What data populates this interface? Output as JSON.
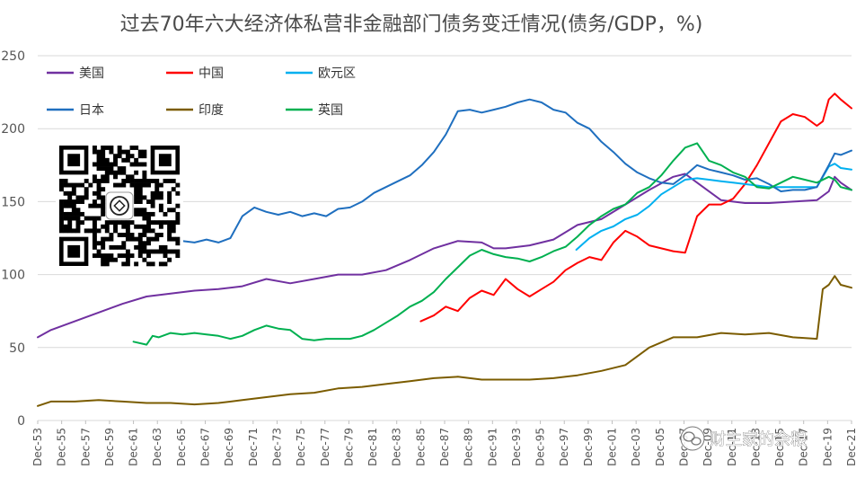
{
  "chart_data": {
    "type": "line",
    "title": "过去70年六大经济体私营非金融部门债务变迁情况(债务/GDP，%)",
    "xlabel": "",
    "ylabel": "",
    "ylim": [
      0,
      250
    ],
    "yticks": [
      0,
      50,
      100,
      150,
      200,
      250
    ],
    "xticks": [
      "Dec-53",
      "Dec-55",
      "Dec-57",
      "Dec-59",
      "Dec-61",
      "Dec-63",
      "Dec-65",
      "Dec-67",
      "Dec-69",
      "Dec-71",
      "Dec-73",
      "Dec-75",
      "Dec-77",
      "Dec-79",
      "Dec-81",
      "Dec-83",
      "Dec-85",
      "Dec-87",
      "Dec-89",
      "Dec-91",
      "Dec-93",
      "Dec-95",
      "Dec-97",
      "Dec-99",
      "Dec-01",
      "Dec-03",
      "Dec-05",
      "Dec-07",
      "Dec-09",
      "Dec-11",
      "Dec-13",
      "Dec-15",
      "Dec-17",
      "Dec-19",
      "Dec-21"
    ],
    "grid": "horizontal",
    "legend_position": "top-left",
    "series": [
      {
        "name": "美国",
        "color": "#7030a0",
        "points": [
          [
            1953.9,
            57
          ],
          [
            1955,
            62
          ],
          [
            1957,
            68
          ],
          [
            1959,
            74
          ],
          [
            1961,
            80
          ],
          [
            1963,
            85
          ],
          [
            1965,
            87
          ],
          [
            1967,
            89
          ],
          [
            1969,
            90
          ],
          [
            1971,
            92
          ],
          [
            1973,
            97
          ],
          [
            1975,
            94
          ],
          [
            1977,
            97
          ],
          [
            1979,
            100
          ],
          [
            1981,
            100
          ],
          [
            1983,
            103
          ],
          [
            1985,
            110
          ],
          [
            1987,
            118
          ],
          [
            1989,
            123
          ],
          [
            1991,
            122
          ],
          [
            1992,
            118
          ],
          [
            1993,
            118
          ],
          [
            1995,
            120
          ],
          [
            1997,
            124
          ],
          [
            1999,
            134
          ],
          [
            2001,
            138
          ],
          [
            2003,
            148
          ],
          [
            2005,
            158
          ],
          [
            2007,
            167
          ],
          [
            2008,
            169
          ],
          [
            2009,
            163
          ],
          [
            2011,
            151
          ],
          [
            2013,
            149
          ],
          [
            2015,
            149
          ],
          [
            2017,
            150
          ],
          [
            2019,
            151
          ],
          [
            2020,
            157
          ],
          [
            2020.5,
            167
          ],
          [
            2021,
            163
          ],
          [
            2021.9,
            158
          ]
        ]
      },
      {
        "name": "中国",
        "color": "#ff0000",
        "points": [
          [
            1985.9,
            68
          ],
          [
            1987,
            72
          ],
          [
            1988,
            78
          ],
          [
            1989,
            75
          ],
          [
            1990,
            84
          ],
          [
            1991,
            89
          ],
          [
            1992,
            86
          ],
          [
            1993,
            97
          ],
          [
            1994,
            90
          ],
          [
            1995,
            85
          ],
          [
            1996,
            90
          ],
          [
            1997,
            95
          ],
          [
            1998,
            103
          ],
          [
            1999,
            108
          ],
          [
            2000,
            112
          ],
          [
            2001,
            110
          ],
          [
            2002,
            122
          ],
          [
            2003,
            130
          ],
          [
            2004,
            126
          ],
          [
            2005,
            120
          ],
          [
            2006,
            118
          ],
          [
            2007,
            116
          ],
          [
            2008,
            115
          ],
          [
            2009,
            140
          ],
          [
            2010,
            148
          ],
          [
            2011,
            148
          ],
          [
            2012,
            152
          ],
          [
            2013,
            162
          ],
          [
            2014,
            175
          ],
          [
            2015,
            190
          ],
          [
            2016,
            205
          ],
          [
            2017,
            210
          ],
          [
            2018,
            208
          ],
          [
            2019,
            202
          ],
          [
            2019.5,
            205
          ],
          [
            2020,
            220
          ],
          [
            2020.5,
            224
          ],
          [
            2021,
            220
          ],
          [
            2021.9,
            214
          ]
        ]
      },
      {
        "name": "欧元区",
        "color": "#00b0f0",
        "points": [
          [
            1998.9,
            117
          ],
          [
            2000,
            125
          ],
          [
            2001,
            130
          ],
          [
            2002,
            133
          ],
          [
            2003,
            138
          ],
          [
            2004,
            141
          ],
          [
            2005,
            147
          ],
          [
            2006,
            155
          ],
          [
            2007,
            160
          ],
          [
            2008,
            165
          ],
          [
            2009,
            166
          ],
          [
            2010,
            165
          ],
          [
            2011,
            164
          ],
          [
            2012,
            163
          ],
          [
            2013,
            162
          ],
          [
            2014,
            161
          ],
          [
            2015,
            160
          ],
          [
            2016,
            160
          ],
          [
            2017,
            160
          ],
          [
            2018,
            160
          ],
          [
            2019,
            160
          ],
          [
            2020,
            174
          ],
          [
            2020.5,
            176
          ],
          [
            2021,
            173
          ],
          [
            2021.9,
            172
          ]
        ]
      },
      {
        "name": "日本",
        "color": "#1f6fbf",
        "points": [
          [
            1964.9,
            121
          ],
          [
            1966,
            123
          ],
          [
            1967,
            122
          ],
          [
            1968,
            124
          ],
          [
            1969,
            122
          ],
          [
            1970,
            125
          ],
          [
            1971,
            140
          ],
          [
            1972,
            146
          ],
          [
            1973,
            143
          ],
          [
            1974,
            141
          ],
          [
            1975,
            143
          ],
          [
            1976,
            140
          ],
          [
            1977,
            142
          ],
          [
            1978,
            140
          ],
          [
            1979,
            145
          ],
          [
            1980,
            146
          ],
          [
            1981,
            150
          ],
          [
            1982,
            156
          ],
          [
            1983,
            160
          ],
          [
            1984,
            164
          ],
          [
            1985,
            168
          ],
          [
            1986,
            175
          ],
          [
            1987,
            184
          ],
          [
            1988,
            196
          ],
          [
            1989,
            212
          ],
          [
            1990,
            213
          ],
          [
            1991,
            211
          ],
          [
            1992,
            213
          ],
          [
            1993,
            215
          ],
          [
            1994,
            218
          ],
          [
            1995,
            220
          ],
          [
            1996,
            218
          ],
          [
            1997,
            213
          ],
          [
            1998,
            211
          ],
          [
            1999,
            204
          ],
          [
            2000,
            200
          ],
          [
            2001,
            191
          ],
          [
            2002,
            184
          ],
          [
            2003,
            176
          ],
          [
            2004,
            170
          ],
          [
            2005,
            166
          ],
          [
            2006,
            163
          ],
          [
            2007,
            162
          ],
          [
            2008,
            168
          ],
          [
            2009,
            175
          ],
          [
            2010,
            172
          ],
          [
            2011,
            170
          ],
          [
            2012,
            168
          ],
          [
            2013,
            165
          ],
          [
            2014,
            166
          ],
          [
            2015,
            162
          ],
          [
            2016,
            157
          ],
          [
            2017,
            158
          ],
          [
            2018,
            158
          ],
          [
            2019,
            160
          ],
          [
            2020,
            175
          ],
          [
            2020.5,
            183
          ],
          [
            2021,
            182
          ],
          [
            2021.9,
            185
          ]
        ]
      },
      {
        "name": "印度",
        "color": "#7b5c00",
        "points": [
          [
            1953.9,
            10
          ],
          [
            1955,
            13
          ],
          [
            1957,
            13
          ],
          [
            1959,
            14
          ],
          [
            1961,
            13
          ],
          [
            1963,
            12
          ],
          [
            1965,
            12
          ],
          [
            1967,
            11
          ],
          [
            1969,
            12
          ],
          [
            1971,
            14
          ],
          [
            1973,
            16
          ],
          [
            1975,
            18
          ],
          [
            1977,
            19
          ],
          [
            1979,
            22
          ],
          [
            1981,
            23
          ],
          [
            1983,
            25
          ],
          [
            1985,
            27
          ],
          [
            1987,
            29
          ],
          [
            1989,
            30
          ],
          [
            1991,
            28
          ],
          [
            1993,
            28
          ],
          [
            1995,
            28
          ],
          [
            1997,
            29
          ],
          [
            1999,
            31
          ],
          [
            2001,
            34
          ],
          [
            2003,
            38
          ],
          [
            2005,
            50
          ],
          [
            2007,
            57
          ],
          [
            2009,
            57
          ],
          [
            2011,
            60
          ],
          [
            2013,
            59
          ],
          [
            2015,
            60
          ],
          [
            2017,
            57
          ],
          [
            2019,
            56
          ],
          [
            2019.5,
            90
          ],
          [
            2020,
            93
          ],
          [
            2020.5,
            99
          ],
          [
            2021,
            93
          ],
          [
            2021.9,
            91
          ]
        ]
      },
      {
        "name": "英国",
        "color": "#00b050",
        "points": [
          [
            1961.9,
            54
          ],
          [
            1963,
            52
          ],
          [
            1963.5,
            58
          ],
          [
            1964,
            57
          ],
          [
            1965,
            60
          ],
          [
            1966,
            59
          ],
          [
            1967,
            60
          ],
          [
            1968,
            59
          ],
          [
            1969,
            58
          ],
          [
            1970,
            56
          ],
          [
            1971,
            58
          ],
          [
            1972,
            62
          ],
          [
            1973,
            65
          ],
          [
            1974,
            63
          ],
          [
            1975,
            62
          ],
          [
            1976,
            56
          ],
          [
            1977,
            55
          ],
          [
            1978,
            56
          ],
          [
            1979,
            56
          ],
          [
            1980,
            56
          ],
          [
            1981,
            58
          ],
          [
            1982,
            62
          ],
          [
            1983,
            67
          ],
          [
            1984,
            72
          ],
          [
            1985,
            78
          ],
          [
            1986,
            82
          ],
          [
            1987,
            88
          ],
          [
            1988,
            97
          ],
          [
            1989,
            105
          ],
          [
            1990,
            113
          ],
          [
            1991,
            117
          ],
          [
            1992,
            114
          ],
          [
            1993,
            112
          ],
          [
            1994,
            111
          ],
          [
            1995,
            109
          ],
          [
            1996,
            112
          ],
          [
            1997,
            116
          ],
          [
            1998,
            119
          ],
          [
            1999,
            126
          ],
          [
            2000,
            134
          ],
          [
            2001,
            140
          ],
          [
            2002,
            145
          ],
          [
            2003,
            148
          ],
          [
            2004,
            156
          ],
          [
            2005,
            160
          ],
          [
            2006,
            168
          ],
          [
            2007,
            178
          ],
          [
            2008,
            187
          ],
          [
            2009,
            190
          ],
          [
            2010,
            178
          ],
          [
            2011,
            175
          ],
          [
            2012,
            170
          ],
          [
            2013,
            167
          ],
          [
            2014,
            160
          ],
          [
            2015,
            159
          ],
          [
            2016,
            163
          ],
          [
            2017,
            167
          ],
          [
            2018,
            165
          ],
          [
            2019,
            163
          ],
          [
            2020,
            167
          ],
          [
            2020.5,
            165
          ],
          [
            2021,
            160
          ],
          [
            2021.9,
            158
          ]
        ]
      }
    ]
  },
  "watermark": {
    "text": "财主家的余粮",
    "icon": "wechat-icon"
  },
  "qr_code": {
    "icon": "qr-code"
  }
}
